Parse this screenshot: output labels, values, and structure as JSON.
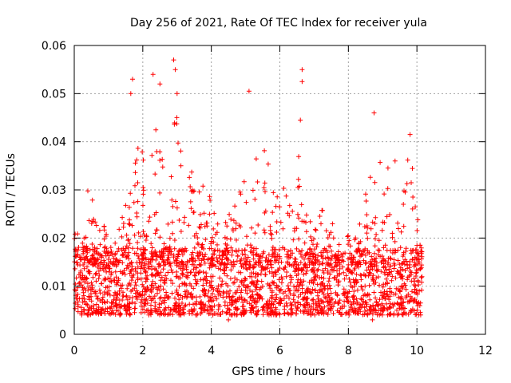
{
  "chart_data": {
    "type": "scatter",
    "title": "Day 256 of 2021, Rate Of TEC Index for receiver yula",
    "xlabel": "GPS time / hours",
    "ylabel": "ROTI / TECUs",
    "xlim": [
      0,
      12
    ],
    "ylim": [
      0,
      0.06
    ],
    "x_ticks": [
      0,
      2,
      4,
      6,
      8,
      10,
      12
    ],
    "x_tick_labels": [
      "0",
      "2",
      "4",
      "6",
      "8",
      "10",
      "12"
    ],
    "y_ticks": [
      0,
      0.01,
      0.02,
      0.03,
      0.04,
      0.05,
      0.06
    ],
    "y_tick_labels": [
      "0",
      "0.01",
      "0.02",
      "0.03",
      "0.04",
      "0.05",
      "0.06"
    ],
    "grid": true,
    "marker": "+",
    "marker_color": "#ff0000",
    "series": [
      {
        "name": "ROTI",
        "x_range": [
          0,
          10.15
        ],
        "baseline_band": [
          0.004,
          0.018
        ],
        "notable_points": [
          {
            "x": 1.7,
            "y": 0.053
          },
          {
            "x": 1.65,
            "y": 0.05
          },
          {
            "x": 2.3,
            "y": 0.054
          },
          {
            "x": 2.5,
            "y": 0.052
          },
          {
            "x": 2.9,
            "y": 0.057
          },
          {
            "x": 2.95,
            "y": 0.055
          },
          {
            "x": 3.0,
            "y": 0.05
          },
          {
            "x": 5.1,
            "y": 0.0505
          },
          {
            "x": 6.65,
            "y": 0.055
          },
          {
            "x": 6.65,
            "y": 0.0525
          },
          {
            "x": 6.6,
            "y": 0.0445
          },
          {
            "x": 8.75,
            "y": 0.046
          },
          {
            "x": 9.8,
            "y": 0.0415
          },
          {
            "x": 4.5,
            "y": 0.003
          },
          {
            "x": 8.7,
            "y": 0.003
          }
        ],
        "envelope": [
          {
            "x": 0.0,
            "y": 0.026
          },
          {
            "x": 0.2,
            "y": 0.022
          },
          {
            "x": 0.4,
            "y": 0.032
          },
          {
            "x": 0.6,
            "y": 0.027
          },
          {
            "x": 0.8,
            "y": 0.025
          },
          {
            "x": 1.0,
            "y": 0.02
          },
          {
            "x": 1.2,
            "y": 0.02
          },
          {
            "x": 1.4,
            "y": 0.025
          },
          {
            "x": 1.6,
            "y": 0.03
          },
          {
            "x": 1.8,
            "y": 0.04
          },
          {
            "x": 2.0,
            "y": 0.038
          },
          {
            "x": 2.2,
            "y": 0.042
          },
          {
            "x": 2.4,
            "y": 0.044
          },
          {
            "x": 2.6,
            "y": 0.04
          },
          {
            "x": 2.8,
            "y": 0.042
          },
          {
            "x": 3.0,
            "y": 0.046
          },
          {
            "x": 3.2,
            "y": 0.038
          },
          {
            "x": 3.4,
            "y": 0.038
          },
          {
            "x": 3.6,
            "y": 0.036
          },
          {
            "x": 3.8,
            "y": 0.031
          },
          {
            "x": 4.0,
            "y": 0.028
          },
          {
            "x": 4.2,
            "y": 0.023
          },
          {
            "x": 4.4,
            "y": 0.026
          },
          {
            "x": 4.6,
            "y": 0.028
          },
          {
            "x": 4.8,
            "y": 0.031
          },
          {
            "x": 5.0,
            "y": 0.036
          },
          {
            "x": 5.2,
            "y": 0.041
          },
          {
            "x": 5.4,
            "y": 0.035
          },
          {
            "x": 5.6,
            "y": 0.04
          },
          {
            "x": 5.8,
            "y": 0.035
          },
          {
            "x": 6.0,
            "y": 0.03
          },
          {
            "x": 6.2,
            "y": 0.031
          },
          {
            "x": 6.4,
            "y": 0.03
          },
          {
            "x": 6.6,
            "y": 0.04
          },
          {
            "x": 6.8,
            "y": 0.026
          },
          {
            "x": 7.0,
            "y": 0.022
          },
          {
            "x": 7.2,
            "y": 0.026
          },
          {
            "x": 7.4,
            "y": 0.025
          },
          {
            "x": 7.6,
            "y": 0.022
          },
          {
            "x": 7.8,
            "y": 0.028
          },
          {
            "x": 8.0,
            "y": 0.022
          },
          {
            "x": 8.2,
            "y": 0.02
          },
          {
            "x": 8.4,
            "y": 0.025
          },
          {
            "x": 8.6,
            "y": 0.033
          },
          {
            "x": 8.8,
            "y": 0.035
          },
          {
            "x": 9.0,
            "y": 0.037
          },
          {
            "x": 9.2,
            "y": 0.035
          },
          {
            "x": 9.4,
            "y": 0.038
          },
          {
            "x": 9.6,
            "y": 0.034
          },
          {
            "x": 9.8,
            "y": 0.04
          },
          {
            "x": 10.0,
            "y": 0.028
          },
          {
            "x": 10.15,
            "y": 0.018
          }
        ]
      }
    ]
  }
}
